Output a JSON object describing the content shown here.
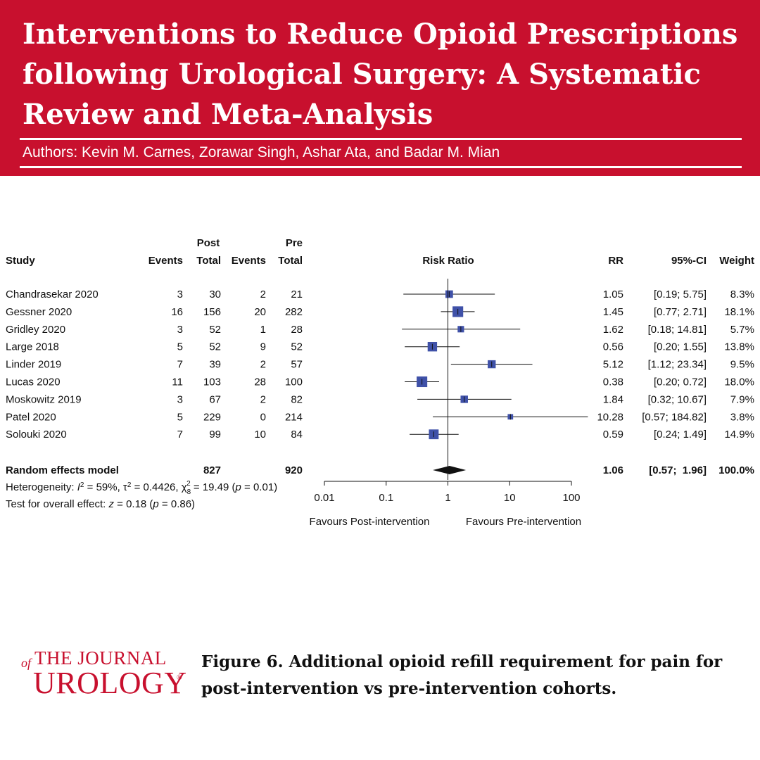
{
  "header": {
    "title": "Interventions to Reduce Opioid Prescriptions following Urological Surgery: A Systematic Review and Meta-Analysis",
    "authors": "Authors: Kevin M. Carnes, Zorawar Singh, Ashar Ata, and Badar M. Mian"
  },
  "table": {
    "group_post": "Post",
    "group_pre": "Pre",
    "col_study": "Study",
    "col_events": "Events",
    "col_total": "Total",
    "col_plot": "Risk Ratio",
    "col_rr": "RR",
    "col_ci": "95%-CI",
    "col_weight": "Weight"
  },
  "chart_data": {
    "type": "forest",
    "measure": "Risk Ratio",
    "x_scale": "log",
    "xlim": [
      0.01,
      100
    ],
    "x_ticks": [
      "0.01",
      "0.1",
      "1",
      "10",
      "100"
    ],
    "favours_left": "Favours Post-intervention",
    "favours_right": "Favours Pre-intervention",
    "studies": [
      {
        "study": "Chandrasekar 2020",
        "post_events": "3",
        "post_total": "30",
        "pre_events": "2",
        "pre_total": "21",
        "rr": 1.05,
        "lo": 0.19,
        "hi": 5.75,
        "rr_text": "1.05",
        "ci_text": "[0.19;  5.75]",
        "weight_text": "8.3%",
        "weight": 8.3
      },
      {
        "study": "Gessner  2020",
        "post_events": "16",
        "post_total": "156",
        "pre_events": "20",
        "pre_total": "282",
        "rr": 1.45,
        "lo": 0.77,
        "hi": 2.71,
        "rr_text": "1.45",
        "ci_text": "[0.77;  2.71]",
        "weight_text": "18.1%",
        "weight": 18.1
      },
      {
        "study": "Gridley 2020",
        "post_events": "3",
        "post_total": "52",
        "pre_events": "1",
        "pre_total": "28",
        "rr": 1.62,
        "lo": 0.18,
        "hi": 14.81,
        "rr_text": "1.62",
        "ci_text": "[0.18; 14.81]",
        "weight_text": "5.7%",
        "weight": 5.7
      },
      {
        "study": "Large 2018",
        "post_events": "5",
        "post_total": "52",
        "pre_events": "9",
        "pre_total": "52",
        "rr": 0.56,
        "lo": 0.2,
        "hi": 1.55,
        "rr_text": "0.56",
        "ci_text": "[0.20;  1.55]",
        "weight_text": "13.8%",
        "weight": 13.8
      },
      {
        "study": "Linder 2019",
        "post_events": "7",
        "post_total": "39",
        "pre_events": "2",
        "pre_total": "57",
        "rr": 5.12,
        "lo": 1.12,
        "hi": 23.34,
        "rr_text": "5.12",
        "ci_text": "[1.12; 23.34]",
        "weight_text": "9.5%",
        "weight": 9.5
      },
      {
        "study": "Lucas 2020",
        "post_events": "11",
        "post_total": "103",
        "pre_events": "28",
        "pre_total": "100",
        "rr": 0.38,
        "lo": 0.2,
        "hi": 0.72,
        "rr_text": "0.38",
        "ci_text": "[0.20;  0.72]",
        "weight_text": "18.0%",
        "weight": 18.0
      },
      {
        "study": "Moskowitz 2019",
        "post_events": "3",
        "post_total": "67",
        "pre_events": "2",
        "pre_total": "82",
        "rr": 1.84,
        "lo": 0.32,
        "hi": 10.67,
        "rr_text": "1.84",
        "ci_text": "[0.32; 10.67]",
        "weight_text": "7.9%",
        "weight": 7.9
      },
      {
        "study": "Patel 2020",
        "post_events": "5",
        "post_total": "229",
        "pre_events": "0",
        "pre_total": "214",
        "rr": 10.28,
        "lo": 0.57,
        "hi": 184.82,
        "rr_text": "10.28",
        "ci_text": "[0.57; 184.82]",
        "weight_text": "3.8%",
        "weight": 3.8
      },
      {
        "study": "Solouki 2020",
        "post_events": "7",
        "post_total": "99",
        "pre_events": "10",
        "pre_total": "84",
        "rr": 0.59,
        "lo": 0.24,
        "hi": 1.49,
        "rr_text": "0.59",
        "ci_text": "[0.24;  1.49]",
        "weight_text": "14.9%",
        "weight": 14.9
      }
    ],
    "pooled": {
      "label": "Random effects model",
      "post_total": "827",
      "pre_total": "920",
      "rr": 1.06,
      "lo": 0.57,
      "hi": 1.96,
      "rr_text": "1.06",
      "ci_text": "[0.57;  1.96]",
      "weight_text": "100.0%"
    },
    "heterogeneity": {
      "prefix": "Heterogeneity: ",
      "i2_symbol": "I",
      "i2_value": " = 59%, τ",
      "tau2_value": " = 0.4426, χ",
      "chi_df": "8",
      "chi_value": " = 19.49 (",
      "p_symbol": "p",
      "p_value": " = 0.01)"
    },
    "overall": {
      "prefix": "Test for overall effect: ",
      "z_symbol": "z",
      "z_value": " = 0.18 (",
      "p_symbol": "p",
      "p_value": " = 0.86)"
    }
  },
  "footer": {
    "logo_of": "of",
    "logo_the_journal": "THE JOURNAL",
    "logo_urology": "UROLOGY",
    "logo_reg": "®",
    "caption": "Figure 6. Additional opioid refill requirement for pain for post-intervention vs pre-intervention cohorts."
  },
  "colors": {
    "brand": "#c8102e",
    "marker": "#3f51a8",
    "ink": "#111111"
  }
}
